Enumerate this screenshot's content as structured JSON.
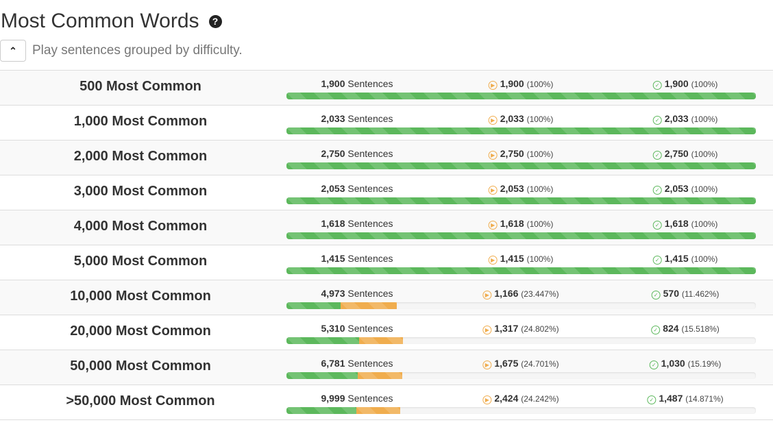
{
  "header": {
    "title": "Most Common Words",
    "help_icon": "question-circle-icon",
    "toggle_icon": "chevron-up-icon",
    "subtitle": "Play sentences grouped by difficulty."
  },
  "colors": {
    "mastered": "#5cb85c",
    "played": "#f0ad4e"
  },
  "sentences_word": "Sentences",
  "rows": [
    {
      "label": "500 Most Common",
      "sentences": "1,900",
      "played": "1,900",
      "played_pct": "(100%)",
      "mastered": "1,900",
      "mastered_pct": "(100%)",
      "played_frac": 1,
      "mastered_frac": 1
    },
    {
      "label": "1,000 Most Common",
      "sentences": "2,033",
      "played": "2,033",
      "played_pct": "(100%)",
      "mastered": "2,033",
      "mastered_pct": "(100%)",
      "played_frac": 1,
      "mastered_frac": 1
    },
    {
      "label": "2,000 Most Common",
      "sentences": "2,750",
      "played": "2,750",
      "played_pct": "(100%)",
      "mastered": "2,750",
      "mastered_pct": "(100%)",
      "played_frac": 1,
      "mastered_frac": 1
    },
    {
      "label": "3,000 Most Common",
      "sentences": "2,053",
      "played": "2,053",
      "played_pct": "(100%)",
      "mastered": "2,053",
      "mastered_pct": "(100%)",
      "played_frac": 1,
      "mastered_frac": 1
    },
    {
      "label": "4,000 Most Common",
      "sentences": "1,618",
      "played": "1,618",
      "played_pct": "(100%)",
      "mastered": "1,618",
      "mastered_pct": "(100%)",
      "played_frac": 1,
      "mastered_frac": 1
    },
    {
      "label": "5,000 Most Common",
      "sentences": "1,415",
      "played": "1,415",
      "played_pct": "(100%)",
      "mastered": "1,415",
      "mastered_pct": "(100%)",
      "played_frac": 1,
      "mastered_frac": 1
    },
    {
      "label": "10,000 Most Common",
      "sentences": "4,973",
      "played": "1,166",
      "played_pct": "(23.447%)",
      "mastered": "570",
      "mastered_pct": "(11.462%)",
      "played_frac": 0.23447,
      "mastered_frac": 0.11462
    },
    {
      "label": "20,000 Most Common",
      "sentences": "5,310",
      "played": "1,317",
      "played_pct": "(24.802%)",
      "mastered": "824",
      "mastered_pct": "(15.518%)",
      "played_frac": 0.24802,
      "mastered_frac": 0.15518
    },
    {
      "label": "50,000 Most Common",
      "sentences": "6,781",
      "played": "1,675",
      "played_pct": "(24.701%)",
      "mastered": "1,030",
      "mastered_pct": "(15.19%)",
      "played_frac": 0.24701,
      "mastered_frac": 0.1519
    },
    {
      "label": ">50,000 Most Common",
      "sentences": "9,999",
      "played": "2,424",
      "played_pct": "(24.242%)",
      "mastered": "1,487",
      "mastered_pct": "(14.871%)",
      "played_frac": 0.24242,
      "mastered_frac": 0.14871
    }
  ]
}
